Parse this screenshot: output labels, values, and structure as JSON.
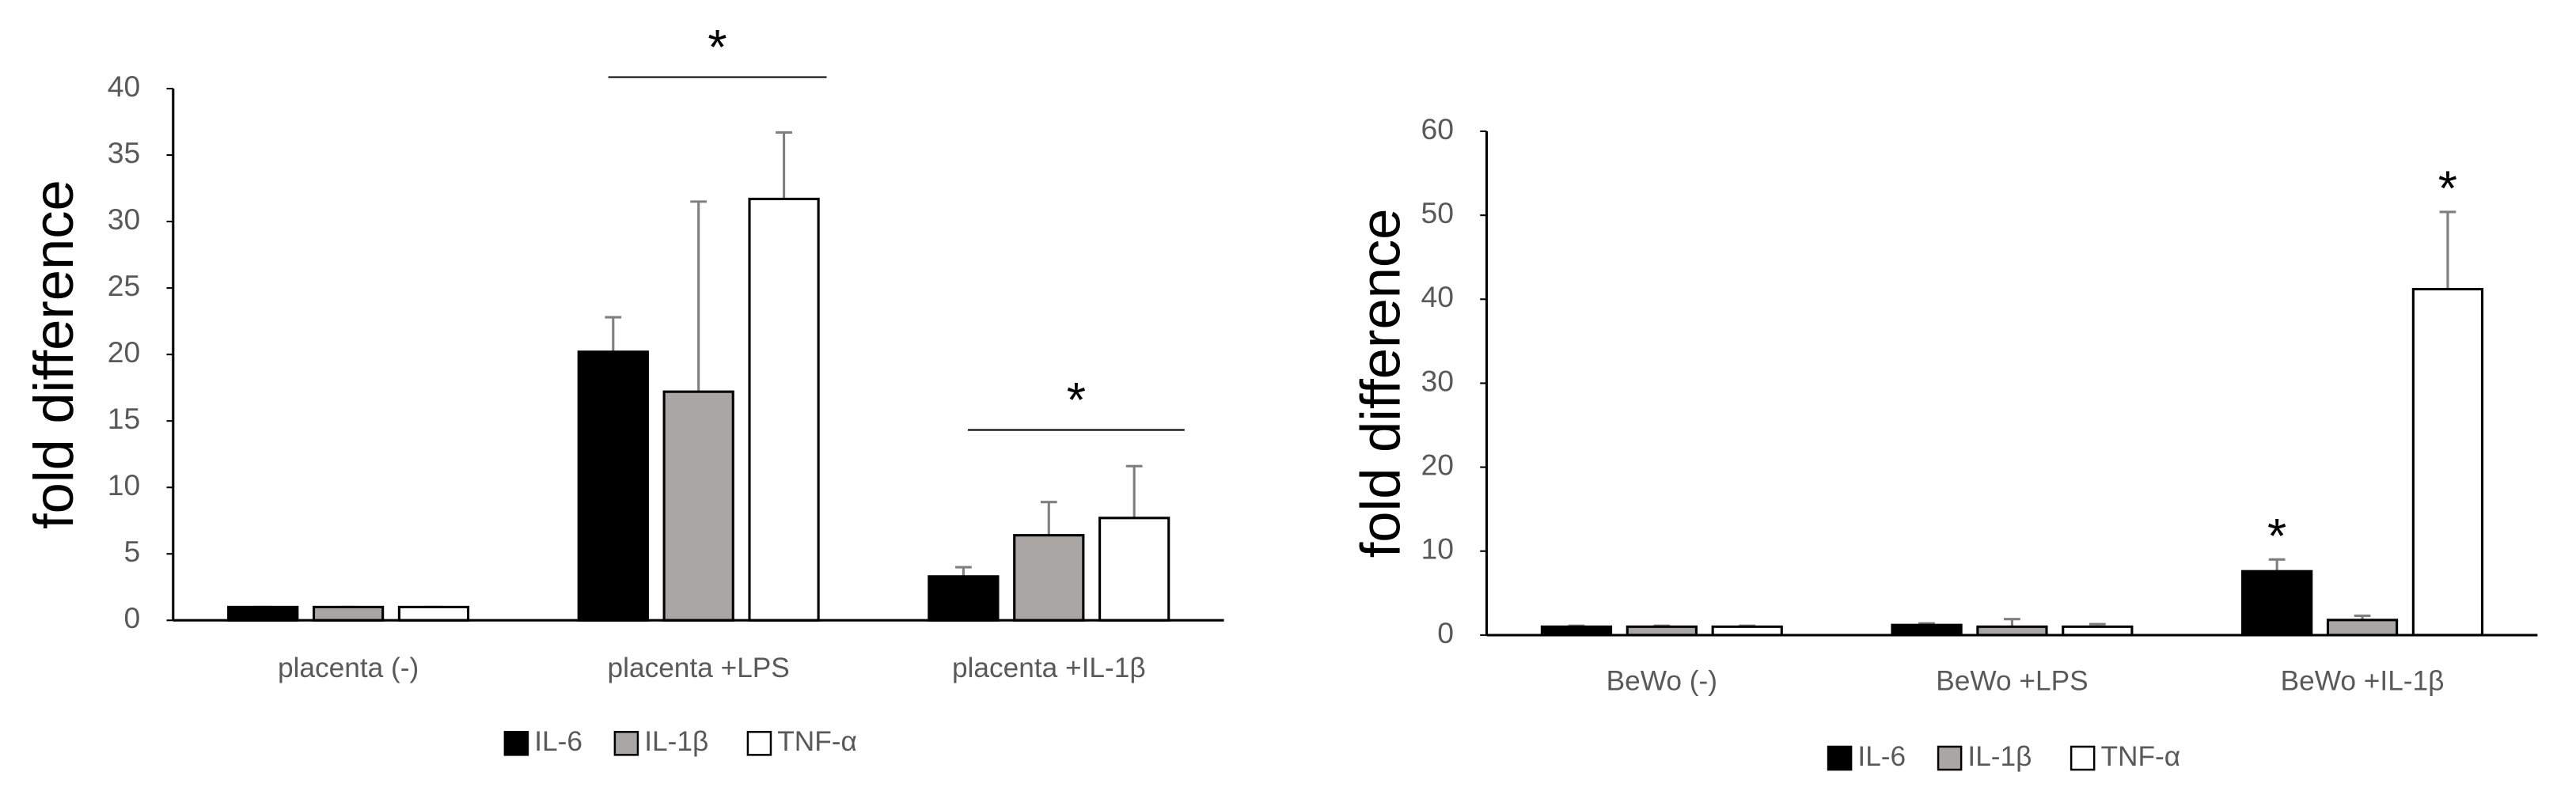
{
  "chart_data": [
    {
      "type": "bar",
      "y_label": "fold difference",
      "categories": [
        "placenta (-)",
        "placenta +LPS",
        "placenta +IL-1β"
      ],
      "series": [
        {
          "name": "IL-6",
          "color": "#000000",
          "values": [
            1,
            20.2,
            3.3
          ],
          "errors": [
            0,
            2.6,
            0.7
          ]
        },
        {
          "name": "IL-1β",
          "color": "#aaa6a4",
          "values": [
            1,
            17.2,
            6.4
          ],
          "errors": [
            0,
            14.3,
            2.5
          ]
        },
        {
          "name": "TNF-α",
          "color": "#ffffff",
          "values": [
            1,
            31.7,
            7.7
          ],
          "errors": [
            0,
            5.0,
            3.9
          ]
        }
      ],
      "ylim": [
        0,
        40
      ],
      "yticks": [
        0,
        5,
        10,
        15,
        20,
        25,
        30,
        35,
        40
      ],
      "annotations": [
        "*",
        "*"
      ]
    },
    {
      "type": "bar",
      "y_label": "fold difference",
      "categories": [
        "BeWo (-)",
        "BeWo +LPS",
        "BeWo +IL-1β"
      ],
      "series": [
        {
          "name": "IL-6",
          "color": "#000000",
          "values": [
            1,
            1.2,
            7.6
          ],
          "errors": [
            0.1,
            0.2,
            1.4
          ]
        },
        {
          "name": "IL-1β",
          "color": "#aaa6a4",
          "values": [
            1,
            1.0,
            1.8
          ],
          "errors": [
            0.1,
            0.9,
            0.5
          ]
        },
        {
          "name": "TNF-α",
          "color": "#ffffff",
          "values": [
            1,
            1.0,
            41.2
          ],
          "errors": [
            0.1,
            0.3,
            9.2
          ]
        }
      ],
      "ylim": [
        0,
        60
      ],
      "yticks": [
        0,
        10,
        20,
        30,
        40,
        50,
        60
      ],
      "annotations": [
        "*",
        "*"
      ]
    }
  ]
}
